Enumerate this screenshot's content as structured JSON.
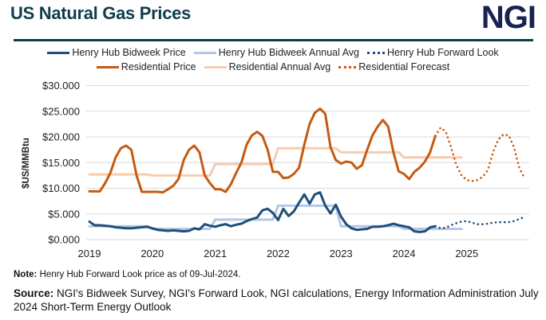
{
  "header": {
    "title": "US Natural Gas Prices",
    "logo_text": "NGI"
  },
  "note": {
    "label": "Note:",
    "text": " Henry Hub Forward Look price as of 09-Jul-2024."
  },
  "source": {
    "label": "Source:",
    "text": " NGI's Bidweek Survey, NGI's Forward Look, NGI calculations, Energy Information Administration July 2024 Short-Term Energy Outlook"
  },
  "chart_data": {
    "type": "line",
    "ylabel": "$US/MMBtu",
    "ylim": [
      0,
      30
    ],
    "yticks": [
      0,
      5,
      10,
      15,
      20,
      25,
      30
    ],
    "ytick_labels": [
      "$0.000",
      "$5.000",
      "$10.000",
      "$15.000",
      "$20.000",
      "$25.000",
      "$30.000"
    ],
    "xlim": [
      "2019-01",
      "2025-12"
    ],
    "xtick_labels": [
      "2019",
      "2020",
      "2021",
      "2022",
      "2023",
      "2024",
      "2025"
    ],
    "grid": "horizontal",
    "legend_position": "top",
    "frequency": "monthly",
    "series": [
      {
        "name": "Henry Hub Bidweek Price",
        "color": "#1f4e79",
        "style": "solid",
        "start": "2019-01",
        "values": [
          3.5,
          2.8,
          2.8,
          2.7,
          2.6,
          2.4,
          2.3,
          2.2,
          2.2,
          2.3,
          2.4,
          2.5,
          2.2,
          1.9,
          1.8,
          1.7,
          1.8,
          1.7,
          1.6,
          1.7,
          2.2,
          2.0,
          3.0,
          2.7,
          2.5,
          2.8,
          3.0,
          2.6,
          2.9,
          3.1,
          3.6,
          4.0,
          4.3,
          5.7,
          6.0,
          5.2,
          3.8,
          6.0,
          4.6,
          5.5,
          7.2,
          8.8,
          7.0,
          8.8,
          9.2,
          6.6,
          5.1,
          6.8,
          4.5,
          3.0,
          2.2,
          1.9,
          2.0,
          2.1,
          2.5,
          2.5,
          2.6,
          2.8,
          3.1,
          2.8,
          2.6,
          2.4,
          1.6,
          1.5,
          1.6,
          2.4,
          2.6
        ]
      },
      {
        "name": "Henry Hub Bidweek Annual Avg",
        "color": "#b4c7e7",
        "style": "solid",
        "annual": true,
        "years": [
          2019,
          2020,
          2021,
          2022,
          2023,
          2024
        ],
        "values": [
          2.6,
          2.1,
          3.9,
          6.6,
          2.6,
          2.1
        ]
      },
      {
        "name": "Henry Hub Forward Look",
        "color": "#1f4e79",
        "style": "dotted",
        "start": "2024-07",
        "values": [
          2.6,
          2.2,
          2.3,
          2.8,
          3.2,
          3.5,
          3.6,
          3.3,
          3.0,
          3.0,
          3.1,
          3.3,
          3.4,
          3.4,
          3.4,
          3.6,
          4.0,
          4.4
        ]
      },
      {
        "name": "Residential Price",
        "color": "#c55a11",
        "style": "solid",
        "start": "2019-01",
        "values": [
          9.4,
          9.4,
          9.4,
          11,
          13,
          16,
          17.8,
          18.3,
          17.5,
          12.5,
          9.3,
          9.3,
          9.3,
          9.3,
          9.2,
          9.8,
          10.5,
          11.8,
          15.5,
          17.5,
          18.3,
          17,
          12.5,
          11,
          9.8,
          9.8,
          9.3,
          10.8,
          13,
          15,
          18.5,
          20.3,
          21,
          20.2,
          17.5,
          13.2,
          13.2,
          12,
          12.1,
          12.8,
          14,
          18.5,
          22.5,
          24.7,
          25.5,
          24.5,
          18,
          15.5,
          14.8,
          15.2,
          15,
          13.8,
          14.5,
          17.5,
          20.3,
          22,
          23.3,
          22,
          17,
          13.3,
          12.8,
          11.8,
          13.2,
          14,
          15.2,
          17,
          20.2
        ]
      },
      {
        "name": "Residential Annual Avg",
        "color": "#f8cbad",
        "style": "solid",
        "annual": true,
        "years": [
          2019,
          2020,
          2021,
          2022,
          2023,
          2024
        ],
        "values": [
          12.7,
          12.5,
          14.7,
          17.8,
          17.0,
          16.0
        ]
      },
      {
        "name": "Residential Forecast",
        "color": "#c55a11",
        "style": "dotted",
        "start": "2024-07",
        "values": [
          20.2,
          21.8,
          21,
          18,
          14.5,
          12.5,
          11.6,
          11.4,
          11.6,
          12.2,
          13.5,
          17,
          19.5,
          20.5,
          20.3,
          18,
          14,
          12
        ]
      }
    ]
  }
}
